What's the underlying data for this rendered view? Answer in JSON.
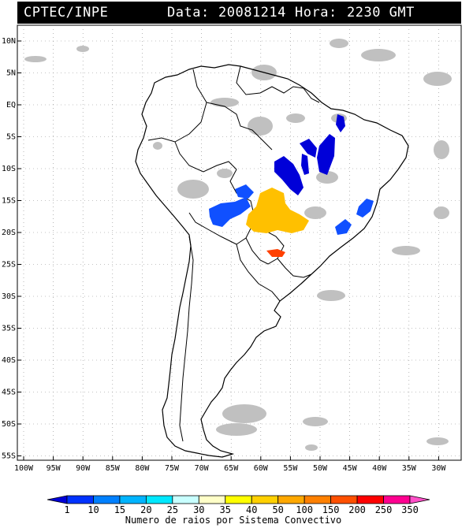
{
  "header": {
    "source": "CPTEC/INPE",
    "date_label": "Data:",
    "date_value": "20081214",
    "time_label": "Hora:",
    "time_value": "2230 GMT"
  },
  "map": {
    "lat_labels": [
      "10N",
      "5N",
      "EQ",
      "5S",
      "10S",
      "15S",
      "20S",
      "25S",
      "30S",
      "35S",
      "40S",
      "45S",
      "50S",
      "55S"
    ],
    "lon_labels": [
      "100W",
      "95W",
      "90W",
      "85W",
      "80W",
      "75W",
      "70W",
      "65W",
      "60W",
      "55W",
      "50W",
      "45W",
      "40W",
      "35W",
      "30W"
    ]
  },
  "legend": {
    "values": [
      "1",
      "10",
      "15",
      "20",
      "25",
      "30",
      "35",
      "40",
      "50",
      "100",
      "150",
      "200",
      "250",
      "350"
    ],
    "colors": [
      "#0000d8",
      "#0032ff",
      "#0080ff",
      "#00b4ff",
      "#00e8ff",
      "#c8ffff",
      "#ffffc8",
      "#ffff00",
      "#ffd000",
      "#ffa800",
      "#ff8000",
      "#ff5000",
      "#ff0000",
      "#ff0090",
      "#ff50c8"
    ],
    "caption": "Numero de raios por Sistema Convectivo"
  }
}
